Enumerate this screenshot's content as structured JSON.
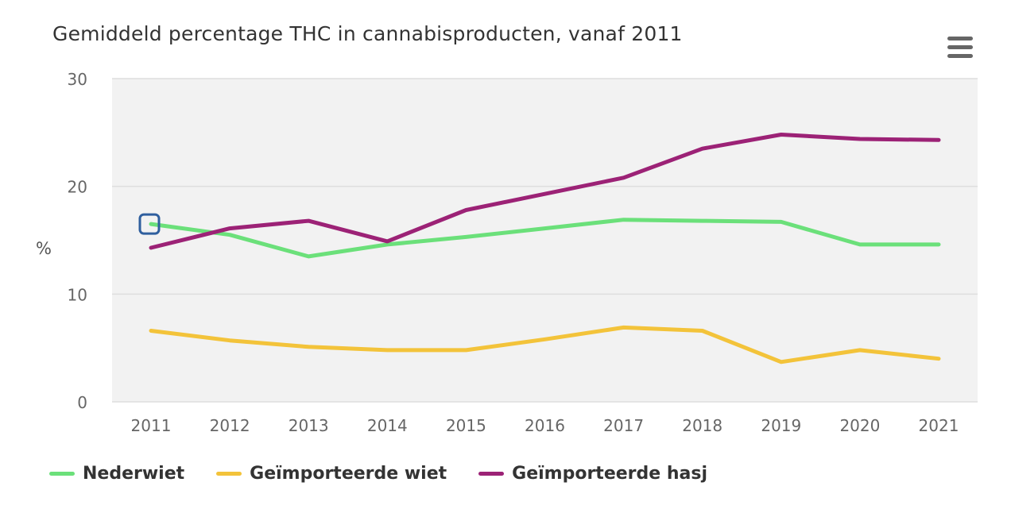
{
  "chart_data": {
    "type": "line",
    "title": "Gemiddeld percentage THC in cannabisproducten, vanaf 2011",
    "ylabel": "%",
    "xlabel": "",
    "x": [
      "2011",
      "2012",
      "2013",
      "2014",
      "2015",
      "2016",
      "2017",
      "2018",
      "2019",
      "2020",
      "2021"
    ],
    "yticks": [
      "0",
      "10",
      "20",
      "30"
    ],
    "ylim": [
      0,
      30
    ],
    "grid": true,
    "legend_position": "bottom-left",
    "series": [
      {
        "name": "Nederwiet",
        "color": "#6be07a",
        "values": [
          16.5,
          15.5,
          13.5,
          14.6,
          15.3,
          16.1,
          16.9,
          16.8,
          16.7,
          14.6,
          14.6
        ]
      },
      {
        "name": "Geïmporteerde wiet",
        "color": "#f3c33a",
        "values": [
          6.6,
          5.7,
          5.1,
          4.8,
          4.8,
          5.8,
          6.9,
          6.6,
          3.7,
          4.8,
          4.0
        ]
      },
      {
        "name": "Geïmporteerde hasj",
        "color": "#9c2276",
        "values": [
          14.3,
          16.1,
          16.8,
          14.9,
          17.8,
          19.3,
          20.8,
          23.5,
          24.8,
          24.4,
          24.3
        ]
      }
    ],
    "highlighted_point": {
      "series": "Nederwiet",
      "x": "2011",
      "color": "#2f5f9e"
    }
  }
}
